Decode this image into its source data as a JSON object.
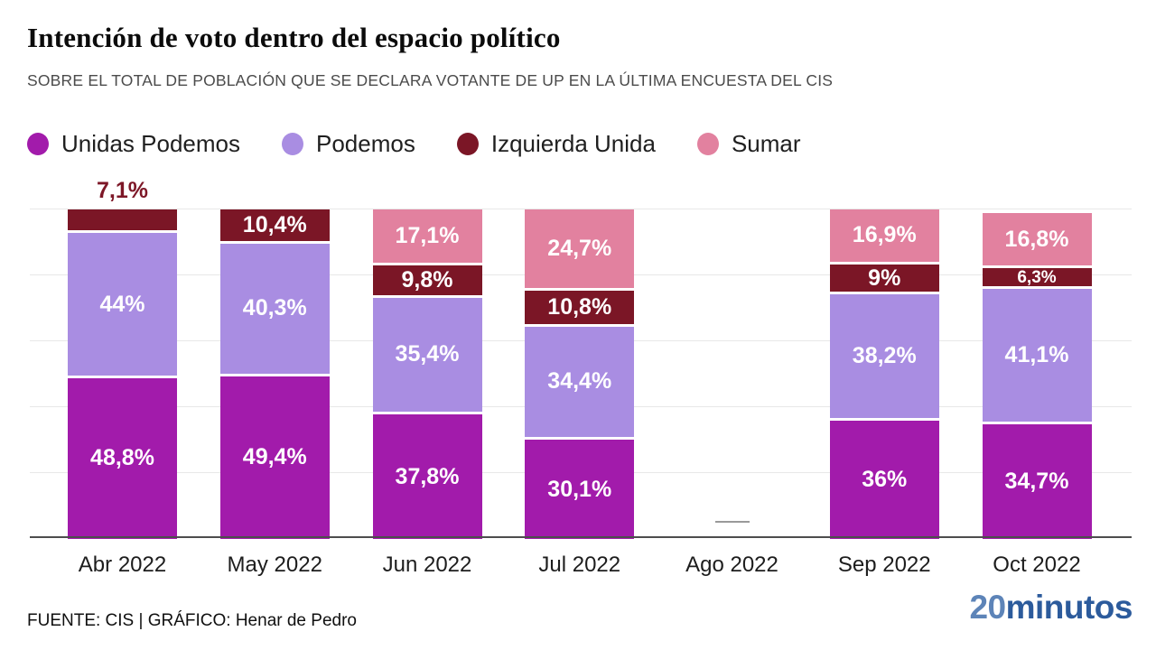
{
  "header": {
    "title": "Intención de voto dentro del espacio político",
    "subtitle": "SOBRE EL TOTAL DE POBLACIÓN QUE SE DECLARA VOTANTE DE UP EN LA ÚLTIMA ENCUESTA DEL CIS"
  },
  "legend": [
    {
      "label": "Unidas Podemos",
      "color": "#a21bab"
    },
    {
      "label": "Podemos",
      "color": "#a98de2"
    },
    {
      "label": "Izquierda Unida",
      "color": "#7b1626"
    },
    {
      "label": "Sumar",
      "color": "#e2819f"
    }
  ],
  "chart_data": {
    "type": "bar",
    "stacked": true,
    "title": "Intención de voto dentro del espacio político",
    "categories": [
      "Abr 2022",
      "May 2022",
      "Jun 2022",
      "Jul 2022",
      "Ago 2022",
      "Sep 2022",
      "Oct 2022"
    ],
    "series": [
      {
        "name": "Unidas Podemos",
        "color": "#a21bab",
        "values": [
          48.8,
          49.4,
          37.8,
          30.1,
          null,
          36,
          34.7
        ],
        "labels": [
          "48,8%",
          "49,4%",
          "37,8%",
          "30,1%",
          "",
          "36%",
          "34,7%"
        ]
      },
      {
        "name": "Podemos",
        "color": "#a98de2",
        "values": [
          44,
          40.3,
          35.4,
          34.4,
          null,
          38.2,
          41.1
        ],
        "labels": [
          "44%",
          "40,3%",
          "35,4%",
          "34,4%",
          "",
          "38,2%",
          "41,1%"
        ]
      },
      {
        "name": "Izquierda Unida",
        "color": "#7b1626",
        "values": [
          7.1,
          10.4,
          9.8,
          10.8,
          null,
          9,
          6.3
        ],
        "labels": [
          "7,1%",
          "10,4%",
          "9,8%",
          "10,8%",
          "",
          "9%",
          "6,3%"
        ]
      },
      {
        "name": "Sumar",
        "color": "#e2819f",
        "values": [
          null,
          null,
          17.1,
          24.7,
          null,
          16.9,
          16.8
        ],
        "labels": [
          "",
          "",
          "17,1%",
          "24,7%",
          "",
          "16,9%",
          "16,8%"
        ]
      }
    ],
    "outside_labels": [
      {
        "bar": 0,
        "series": 2,
        "label": "7,1%",
        "color": "#7d1727"
      }
    ],
    "no_data_marker": {
      "category": "Ago 2022",
      "symbol": "—"
    },
    "ylim": [
      0,
      100
    ],
    "ytick_step": 20,
    "grid": true,
    "legend_position": "top"
  },
  "footer": {
    "source": "FUENTE: CIS  |  GRÁFICO: Henar de Pedro",
    "logo": {
      "part1": "20",
      "part2": "minutos"
    }
  }
}
